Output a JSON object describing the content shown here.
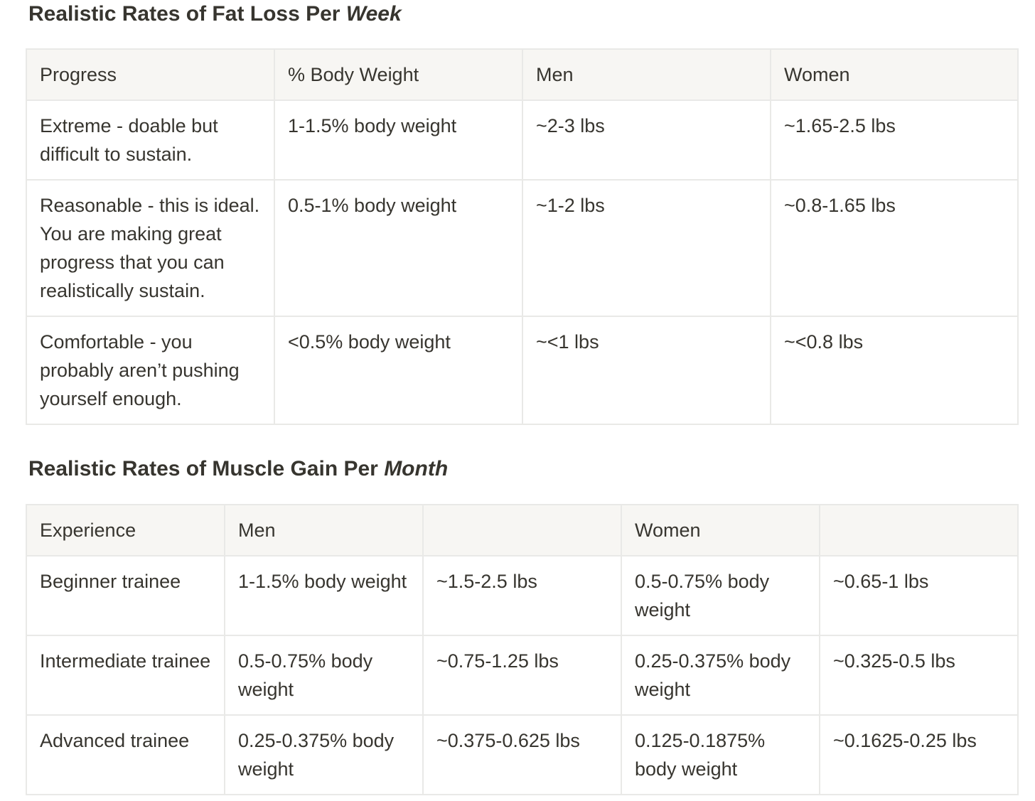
{
  "fat_loss": {
    "title_prefix": "Realistic Rates of Fat Loss Per ",
    "title_emphasis": "Week",
    "headers": [
      "Progress",
      "% Body Weight",
      "Men",
      "Women"
    ],
    "rows": [
      [
        "Extreme - doable but difficult to sustain.",
        "1-1.5% body weight",
        "~2-3 lbs",
        "~1.65-2.5 lbs"
      ],
      [
        "Reasonable - this is ideal. You are making great progress that you can realistically sustain.",
        "0.5-1% body weight",
        "~1-2 lbs",
        "~0.8-1.65 lbs"
      ],
      [
        "Comfortable - you probably aren’t pushing yourself enough.",
        "<0.5% body weight",
        "~<1 lbs",
        "~<0.8 lbs"
      ]
    ]
  },
  "muscle_gain": {
    "title_prefix": "Realistic Rates of Muscle Gain Per ",
    "title_emphasis": "Month",
    "headers": [
      "Experience",
      "Men",
      "",
      "Women",
      ""
    ],
    "rows": [
      [
        "Beginner trainee",
        "1-1.5% body weight",
        "~1.5-2.5 lbs",
        "0.5-0.75% body weight",
        "~0.65-1 lbs"
      ],
      [
        "Intermediate trainee",
        "0.5-0.75% body weight",
        "~0.75-1.25 lbs",
        "0.25-0.375% body weight",
        "~0.325-0.5 lbs"
      ],
      [
        "Advanced trainee",
        "0.25-0.375% body weight",
        "~0.375-0.625 lbs",
        "0.125-0.1875% body weight",
        "~0.1625-0.25 lbs"
      ]
    ]
  }
}
